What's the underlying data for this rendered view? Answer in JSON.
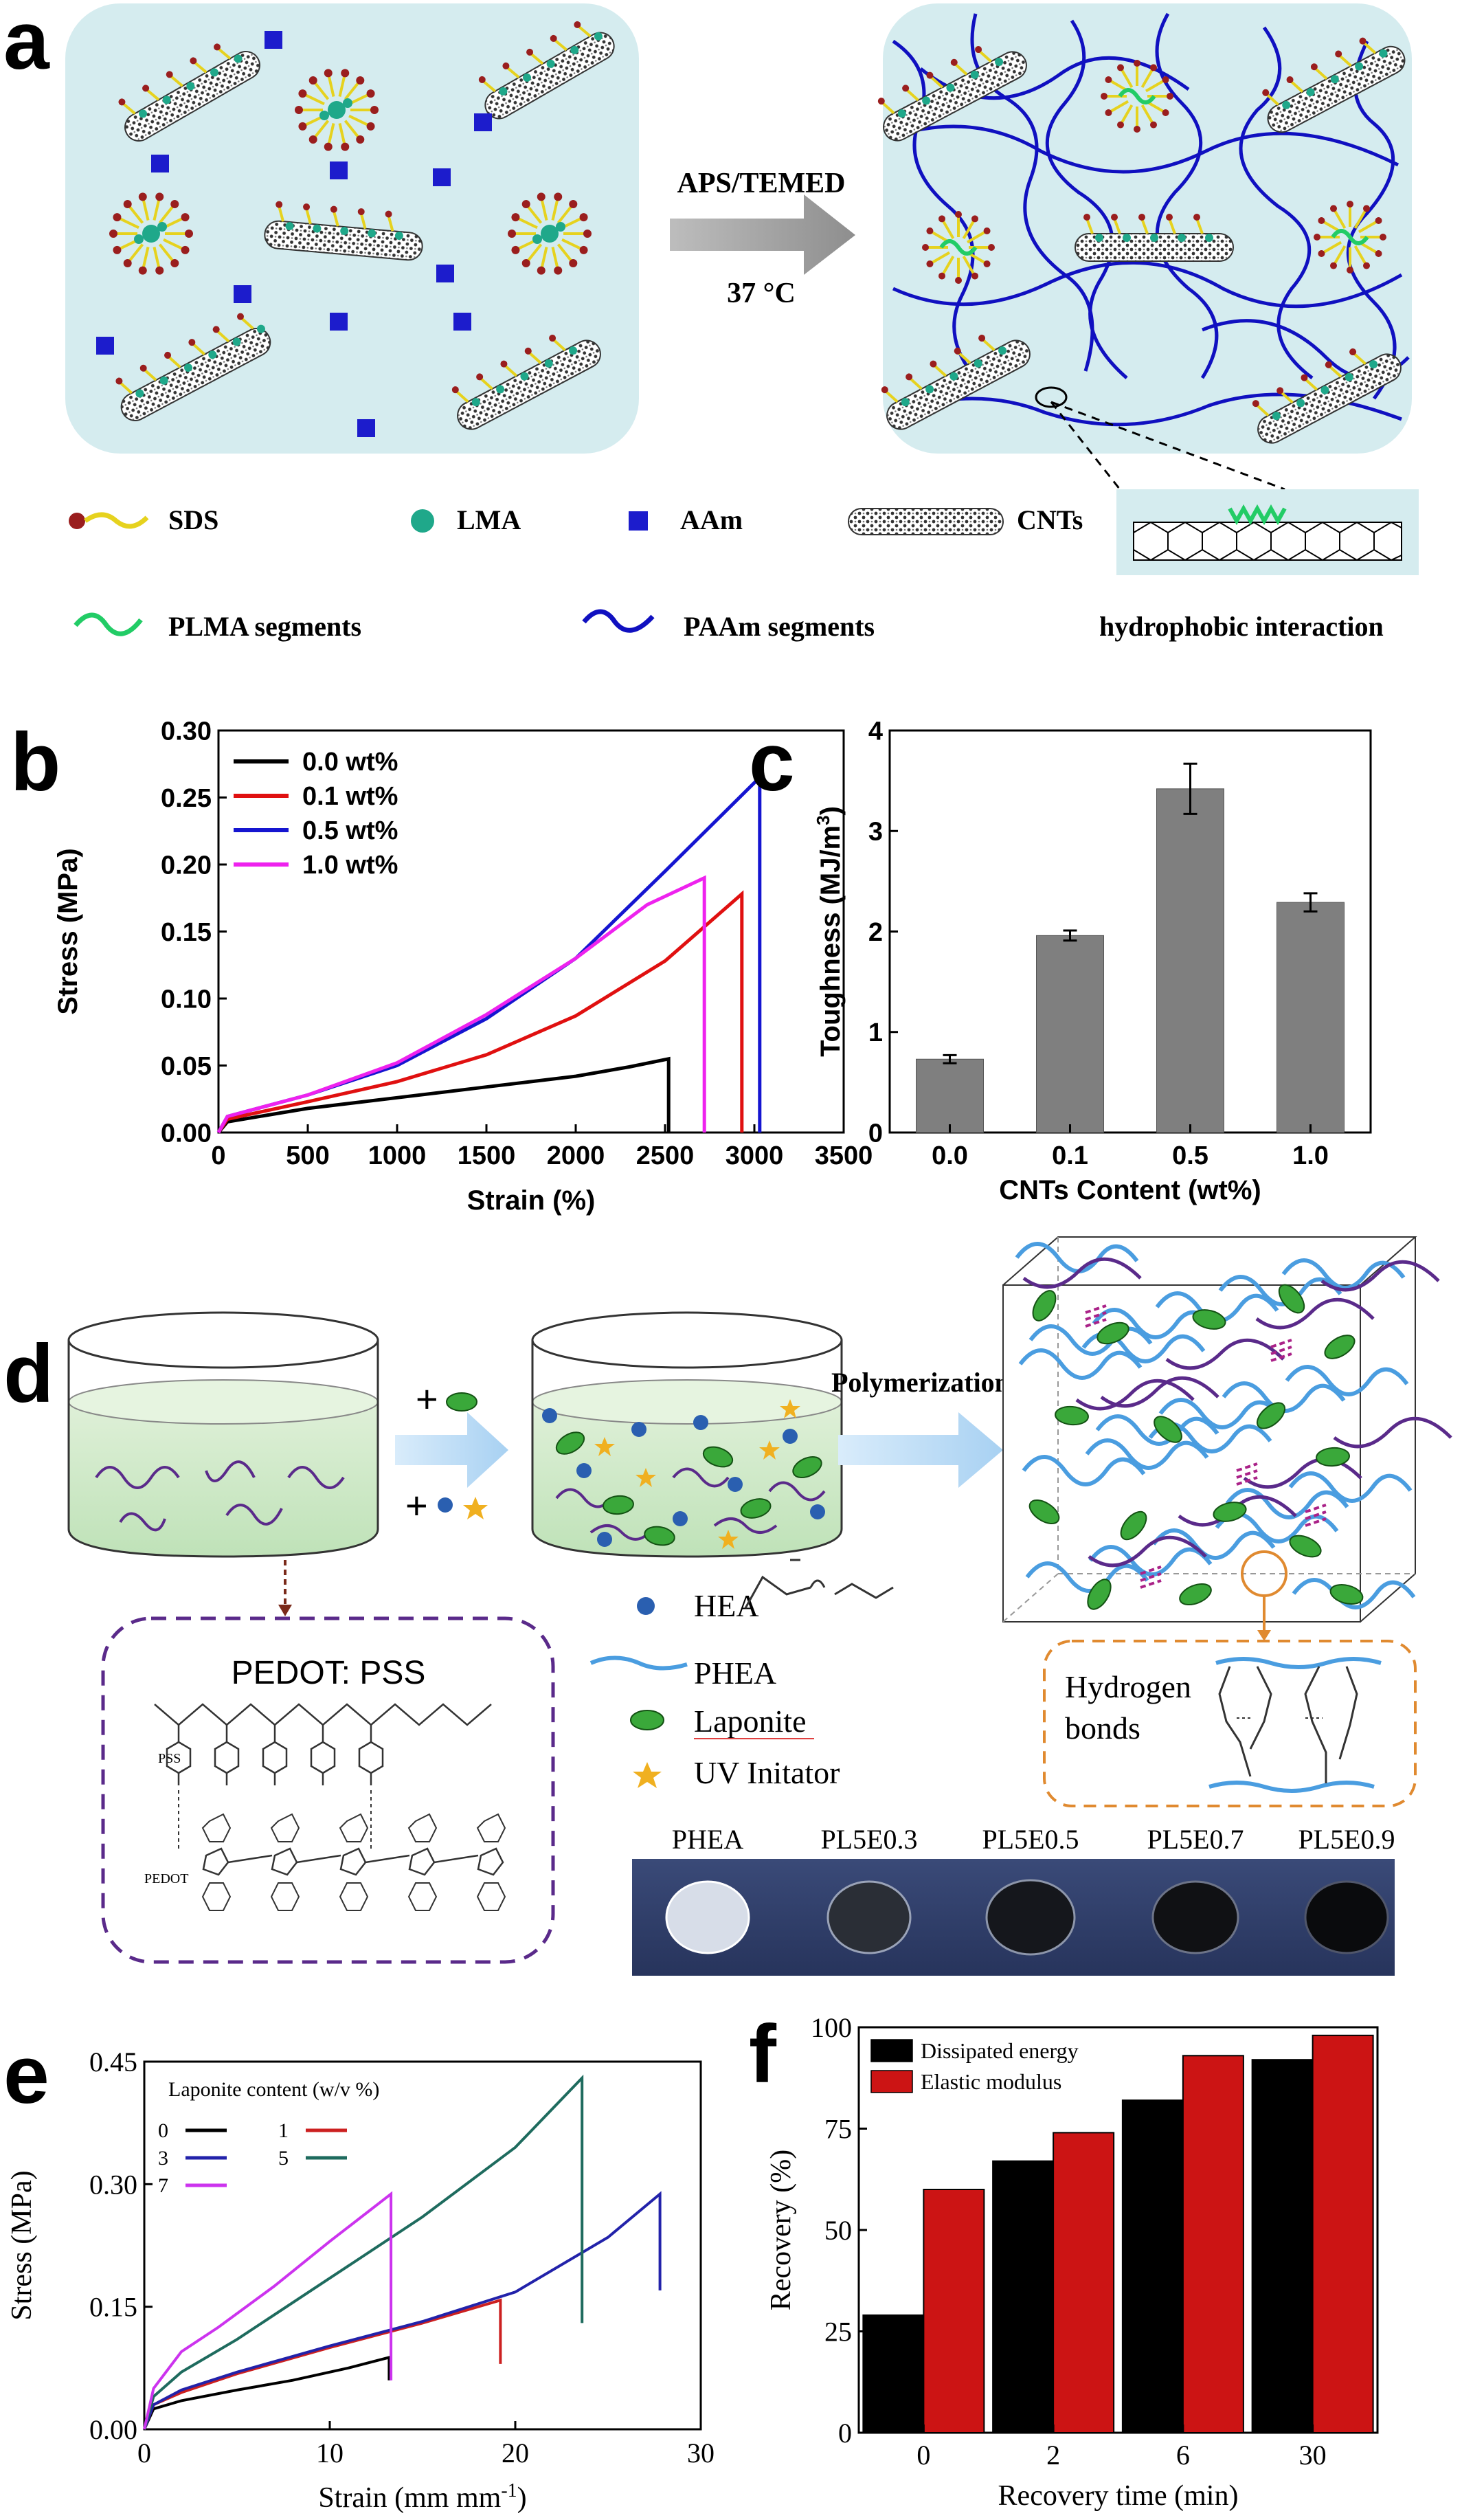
{
  "panel_labels": {
    "a": "a",
    "b": "b",
    "c": "c",
    "d": "d",
    "e": "e",
    "f": "f"
  },
  "panel_a": {
    "arrow_top": "APS/TEMED",
    "arrow_bottom": "37 °C",
    "legend": {
      "sds": "SDS",
      "lma": "LMA",
      "aam": "AAm",
      "cnts": "CNTs",
      "plma": "PLMA segments",
      "paam": "PAAm segments",
      "hydrophobic": "hydrophobic interaction"
    },
    "colors": {
      "box_fill": "#d5ecef",
      "aam": "#1c1ccc",
      "paam": "#1010c0",
      "plma": "#22cc66",
      "sds_tail": "#e6d21e",
      "sds_head": "#9a1e1e",
      "lma": "#1fa88a"
    }
  },
  "panel_d": {
    "arrow_plus_top": "+",
    "arrow_plus_bottom": "+",
    "polymerization": "Polymerization",
    "legend": {
      "hea": "HEA",
      "phea": "PHEA",
      "laponite": "Laponite",
      "uv": "UV Initator"
    },
    "pedot_box_title": "PEDOT: PSS",
    "pss_label": "PSS",
    "pedot_label": "PEDOT",
    "hbond_label_1": "Hydrogen",
    "hbond_label_2": "bonds",
    "photo_labels": [
      "PHEA",
      "PL5E0.3",
      "PL5E0.5",
      "PL5E0.7",
      "PL5E0.9"
    ]
  },
  "chart_data": [
    {
      "id": "b",
      "type": "line",
      "xlabel": "Strain (%)",
      "ylabel": "Stress (MPa)",
      "xlim": [
        0,
        3500
      ],
      "ylim": [
        0,
        0.3
      ],
      "xticks": [
        "0",
        "500",
        "1000",
        "1500",
        "2000",
        "2500",
        "3000",
        "3500"
      ],
      "yticks": [
        "0.00",
        "0.05",
        "0.10",
        "0.15",
        "0.20",
        "0.25",
        "0.30"
      ],
      "legend_position": "top-left",
      "series": [
        {
          "name": "0.0 wt%",
          "color": "#000000",
          "x": [
            0,
            50,
            500,
            1000,
            1500,
            2000,
            2300,
            2520,
            2520
          ],
          "y": [
            0,
            0.008,
            0.018,
            0.026,
            0.034,
            0.042,
            0.049,
            0.055,
            0
          ]
        },
        {
          "name": "0.1 wt%",
          "color": "#e01010",
          "x": [
            0,
            50,
            500,
            1000,
            1500,
            2000,
            2500,
            2930,
            2930
          ],
          "y": [
            0,
            0.01,
            0.023,
            0.038,
            0.058,
            0.087,
            0.128,
            0.178,
            0
          ]
        },
        {
          "name": "0.5 wt%",
          "color": "#1515d0",
          "x": [
            0,
            50,
            500,
            1000,
            1500,
            2000,
            2500,
            3030,
            3030
          ],
          "y": [
            0,
            0.012,
            0.028,
            0.05,
            0.085,
            0.13,
            0.195,
            0.265,
            0
          ]
        },
        {
          "name": "1.0 wt%",
          "color": "#ee22ee",
          "x": [
            0,
            50,
            500,
            1000,
            1500,
            2000,
            2400,
            2720,
            2720
          ],
          "y": [
            0,
            0.012,
            0.028,
            0.052,
            0.088,
            0.13,
            0.17,
            0.19,
            0
          ]
        }
      ]
    },
    {
      "id": "c",
      "type": "bar",
      "xlabel": "CNTs Content (wt%)",
      "ylabel": "Toughness (MJ/m",
      "ylabel_sup": "3",
      "ylabel_end": ")",
      "ylim": [
        0,
        4
      ],
      "yticks": [
        "0",
        "1",
        "2",
        "3",
        "4"
      ],
      "categories": [
        "0.0",
        "0.1",
        "0.5",
        "1.0"
      ],
      "values": [
        0.73,
        1.96,
        3.42,
        2.29
      ],
      "errors": [
        0.04,
        0.05,
        0.25,
        0.09
      ],
      "bar_color": "#7f7f7f"
    },
    {
      "id": "e",
      "type": "line",
      "xlabel": "Strain (mm mm",
      "xlabel_sup": "-1",
      "xlabel_end": ")",
      "ylabel": "Stress (MPa)",
      "xlim": [
        0,
        30
      ],
      "ylim": [
        0,
        0.45
      ],
      "xticks": [
        "0",
        "10",
        "20",
        "30"
      ],
      "yticks": [
        "0.00",
        "0.15",
        "0.30",
        "0.45"
      ],
      "legend_title": "Laponite content (w/v %)",
      "legend_position": "top-left",
      "series": [
        {
          "name": "0",
          "color": "#000000",
          "x": [
            0,
            0.5,
            2,
            5,
            8,
            11,
            13.2,
            13.2
          ],
          "y": [
            0,
            0.025,
            0.035,
            0.048,
            0.06,
            0.075,
            0.088,
            0.06
          ]
        },
        {
          "name": "1",
          "color": "#cc2020",
          "x": [
            0,
            0.5,
            2,
            5,
            10,
            15,
            19.2,
            19.2
          ],
          "y": [
            0,
            0.03,
            0.045,
            0.068,
            0.1,
            0.13,
            0.158,
            0.08
          ]
        },
        {
          "name": "3",
          "color": "#2222aa",
          "x": [
            0,
            0.5,
            2,
            5,
            10,
            15,
            20,
            25,
            27.8,
            27.8
          ],
          "y": [
            0,
            0.03,
            0.048,
            0.07,
            0.102,
            0.132,
            0.168,
            0.235,
            0.288,
            0.17
          ]
        },
        {
          "name": "5",
          "color": "#1e6b5e",
          "x": [
            0,
            0.5,
            2,
            5,
            10,
            15,
            20,
            23.6,
            23.6
          ],
          "y": [
            0,
            0.04,
            0.07,
            0.11,
            0.185,
            0.26,
            0.345,
            0.43,
            0.13
          ]
        },
        {
          "name": "7",
          "color": "#cc33ee",
          "x": [
            0,
            0.5,
            2,
            4,
            7,
            10,
            13.3,
            13.3
          ],
          "y": [
            0,
            0.05,
            0.095,
            0.125,
            0.175,
            0.23,
            0.288,
            0.06
          ]
        }
      ]
    },
    {
      "id": "f",
      "type": "bar",
      "xlabel": "Recovery time (min)",
      "ylabel": "Recovery (%)",
      "ylim": [
        0,
        100
      ],
      "yticks": [
        "0",
        "25",
        "50",
        "75",
        "100"
      ],
      "categories": [
        "0",
        "2",
        "6",
        "30"
      ],
      "legend_position": "top-left",
      "series": [
        {
          "name": "Dissipated energy",
          "color": "#000000",
          "values": [
            29,
            67,
            82,
            92
          ]
        },
        {
          "name": "Elastic modulus",
          "color": "#cc1414",
          "values": [
            60,
            74,
            93,
            98
          ]
        }
      ]
    }
  ]
}
